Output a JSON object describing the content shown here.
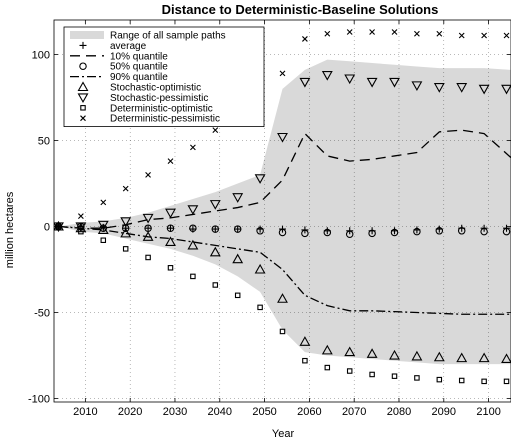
{
  "chart_data": {
    "type": "line",
    "title": "Distance to Deterministic-Baseline Solutions",
    "xlabel": "Year",
    "ylabel": "million hectares",
    "xlim": [
      2003,
      2105
    ],
    "ylim": [
      -102,
      120
    ],
    "xticks": [
      2010,
      2020,
      2030,
      2040,
      2050,
      2060,
      2070,
      2080,
      2090,
      2100
    ],
    "yticks": [
      -100,
      -50,
      0,
      50,
      100
    ],
    "ytick_labels": [
      "-100",
      "-50",
      "0",
      "50",
      "100"
    ],
    "grid": true,
    "legend_position": "top-left",
    "band": {
      "name": "Range of all sample paths",
      "color": "#d9d9d9",
      "x": [
        2004,
        2009,
        2014,
        2019,
        2024,
        2029,
        2034,
        2039,
        2044,
        2049,
        2054,
        2059,
        2064,
        2069,
        2074,
        2079,
        2084,
        2089,
        2094,
        2099,
        2105
      ],
      "upper": [
        0,
        2,
        3,
        5,
        8,
        12,
        16,
        20,
        25,
        30,
        80,
        91,
        97,
        96,
        95,
        94,
        93,
        92,
        92,
        92,
        91
      ],
      "lower": [
        0,
        -3,
        -4,
        -7,
        -10,
        -13,
        -17,
        -22,
        -29,
        -38,
        -60,
        -73,
        -75,
        -76,
        -77,
        -78,
        -79,
        -80,
        -80,
        -80,
        -80
      ]
    },
    "series": [
      {
        "name": "average",
        "style": "marker",
        "marker": "plus",
        "x": [
          2004,
          2009,
          2014,
          2019,
          2024,
          2029,
          2034,
          2039,
          2044,
          2049,
          2054,
          2059,
          2064,
          2069,
          2074,
          2079,
          2084,
          2089,
          2094,
          2099,
          2104
        ],
        "values": [
          0,
          0,
          -0.5,
          -1,
          -1,
          -1,
          -1.5,
          -1.5,
          -1.5,
          -1.5,
          -1.5,
          -2,
          -2.5,
          -2.5,
          -2.5,
          -2.5,
          -2,
          -1.5,
          -1,
          -1,
          -1
        ]
      },
      {
        "name": "10% quantile",
        "style": "line",
        "dash": "10,6",
        "x": [
          2004,
          2009,
          2014,
          2019,
          2024,
          2029,
          2034,
          2039,
          2044,
          2049,
          2054,
          2059,
          2064,
          2069,
          2074,
          2079,
          2084,
          2089,
          2094,
          2099,
          2105
        ],
        "values": [
          0,
          -1,
          -1,
          1,
          4,
          5,
          7,
          9,
          11,
          14,
          27,
          54,
          41,
          38,
          39,
          41,
          43,
          55,
          56,
          54,
          40
        ]
      },
      {
        "name": "50% quantile",
        "style": "marker",
        "marker": "circle",
        "x": [
          2004,
          2009,
          2014,
          2019,
          2024,
          2029,
          2034,
          2039,
          2044,
          2049,
          2054,
          2059,
          2064,
          2069,
          2074,
          2079,
          2084,
          2089,
          2094,
          2099,
          2104
        ],
        "values": [
          0,
          0,
          -1,
          -1,
          -1,
          -1,
          -1,
          -1.5,
          -1.5,
          -2.5,
          -3.5,
          -4,
          -3.5,
          -4.5,
          -4,
          -3.5,
          -3,
          -2.5,
          -2.5,
          -3,
          -3
        ]
      },
      {
        "name": "90% quantile",
        "style": "line",
        "dash": "9,3,2,3",
        "x": [
          2004,
          2009,
          2014,
          2019,
          2024,
          2029,
          2034,
          2039,
          2044,
          2049,
          2054,
          2059,
          2064,
          2069,
          2074,
          2079,
          2084,
          2089,
          2094,
          2099,
          2105
        ],
        "values": [
          0,
          -1,
          -2,
          -4,
          -6,
          -7,
          -9,
          -11,
          -13,
          -15,
          -25,
          -40,
          -46,
          -49,
          -49,
          -49.5,
          -50,
          -50.5,
          -51,
          -51,
          -51
        ]
      },
      {
        "name": "Stochastic-optimistic",
        "style": "marker",
        "marker": "triangle-up",
        "x": [
          2004,
          2009,
          2014,
          2019,
          2024,
          2029,
          2034,
          2039,
          2044,
          2049,
          2054,
          2059,
          2064,
          2069,
          2074,
          2079,
          2084,
          2089,
          2094,
          2099,
          2104
        ],
        "values": [
          0,
          -1,
          -2,
          -4,
          -6,
          -9,
          -11,
          -15,
          -19,
          -25,
          -42,
          -67,
          -72,
          -73,
          -74,
          -75,
          -75.5,
          -76,
          -76.5,
          -76.5,
          -77
        ]
      },
      {
        "name": "Stochastic-pessimistic",
        "style": "marker",
        "marker": "triangle-down",
        "x": [
          2004,
          2009,
          2014,
          2019,
          2024,
          2029,
          2034,
          2039,
          2044,
          2049,
          2054,
          2059,
          2064,
          2069,
          2074,
          2079,
          2084,
          2089,
          2094,
          2099,
          2104
        ],
        "values": [
          0,
          0,
          1,
          3,
          5,
          8,
          10,
          13,
          17,
          28,
          52,
          84,
          88,
          86,
          84,
          84,
          82,
          81,
          81,
          80,
          80
        ]
      },
      {
        "name": "Deterministic-optimistic",
        "style": "marker",
        "marker": "square",
        "x": [
          2004,
          2009,
          2014,
          2019,
          2024,
          2029,
          2034,
          2039,
          2044,
          2049,
          2054,
          2059,
          2064,
          2069,
          2074,
          2079,
          2084,
          2089,
          2094,
          2099,
          2104
        ],
        "values": [
          0,
          -3,
          -8,
          -13,
          -18,
          -24,
          -29,
          -34,
          -40,
          -47,
          -61,
          -78,
          -82,
          -84,
          -86,
          -87,
          -88,
          -89,
          -89.5,
          -90,
          -90
        ]
      },
      {
        "name": "Deterministic-pessimistic",
        "style": "marker",
        "marker": "cross",
        "x": [
          2004,
          2009,
          2014,
          2019,
          2024,
          2029,
          2034,
          2039,
          2044,
          2049,
          2054,
          2059,
          2064,
          2069,
          2074,
          2079,
          2084,
          2089,
          2094,
          2099,
          2104
        ],
        "values": [
          0,
          6,
          14,
          22,
          30,
          38,
          46,
          56,
          64,
          72,
          89,
          109,
          112,
          113,
          113,
          113,
          112,
          112,
          111,
          111,
          111
        ]
      }
    ]
  }
}
